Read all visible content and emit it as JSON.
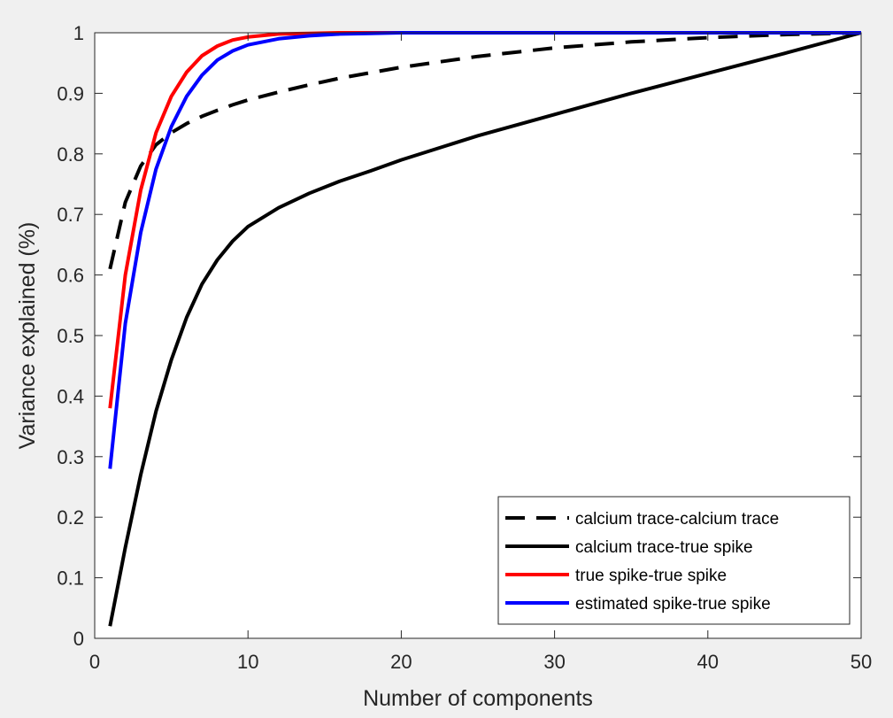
{
  "chart_data": {
    "type": "line",
    "xlabel": "Number of components",
    "ylabel": "Variance explained (%)",
    "xlim": [
      0,
      50
    ],
    "ylim": [
      0,
      1
    ],
    "xticks": [
      0,
      10,
      20,
      30,
      40,
      50
    ],
    "yticks": [
      0,
      0.1,
      0.2,
      0.3,
      0.4,
      0.5,
      0.6,
      0.7,
      0.8,
      0.9,
      1
    ],
    "grid": false,
    "legend_position": "bottom-right",
    "x": [
      1,
      2,
      3,
      4,
      5,
      6,
      7,
      8,
      9,
      10,
      12,
      14,
      16,
      18,
      20,
      25,
      30,
      35,
      40,
      45,
      50
    ],
    "series": [
      {
        "name": "calcium trace-calcium trace",
        "color": "#000000",
        "dash": true,
        "values": [
          0.61,
          0.72,
          0.78,
          0.815,
          0.835,
          0.85,
          0.862,
          0.872,
          0.881,
          0.889,
          0.902,
          0.914,
          0.925,
          0.934,
          0.943,
          0.961,
          0.975,
          0.985,
          0.992,
          0.997,
          1.0
        ]
      },
      {
        "name": "calcium trace-true spike",
        "color": "#000000",
        "dash": false,
        "values": [
          0.02,
          0.15,
          0.27,
          0.375,
          0.46,
          0.53,
          0.585,
          0.625,
          0.656,
          0.68,
          0.711,
          0.735,
          0.755,
          0.772,
          0.79,
          0.83,
          0.865,
          0.9,
          0.933,
          0.966,
          1.0
        ]
      },
      {
        "name": "true spike-true spike",
        "color": "#ff0000",
        "dash": false,
        "values": [
          0.38,
          0.6,
          0.74,
          0.835,
          0.895,
          0.935,
          0.962,
          0.978,
          0.988,
          0.993,
          0.998,
          0.999,
          1.0,
          1.0,
          1.0,
          1.0,
          1.0,
          1.0,
          1.0,
          1.0,
          1.0
        ]
      },
      {
        "name": "estimated spike-true spike",
        "color": "#0000ff",
        "dash": false,
        "values": [
          0.28,
          0.52,
          0.67,
          0.775,
          0.845,
          0.895,
          0.93,
          0.955,
          0.97,
          0.98,
          0.99,
          0.995,
          0.998,
          0.999,
          1.0,
          1.0,
          1.0,
          1.0,
          1.0,
          1.0,
          1.0
        ]
      }
    ]
  }
}
